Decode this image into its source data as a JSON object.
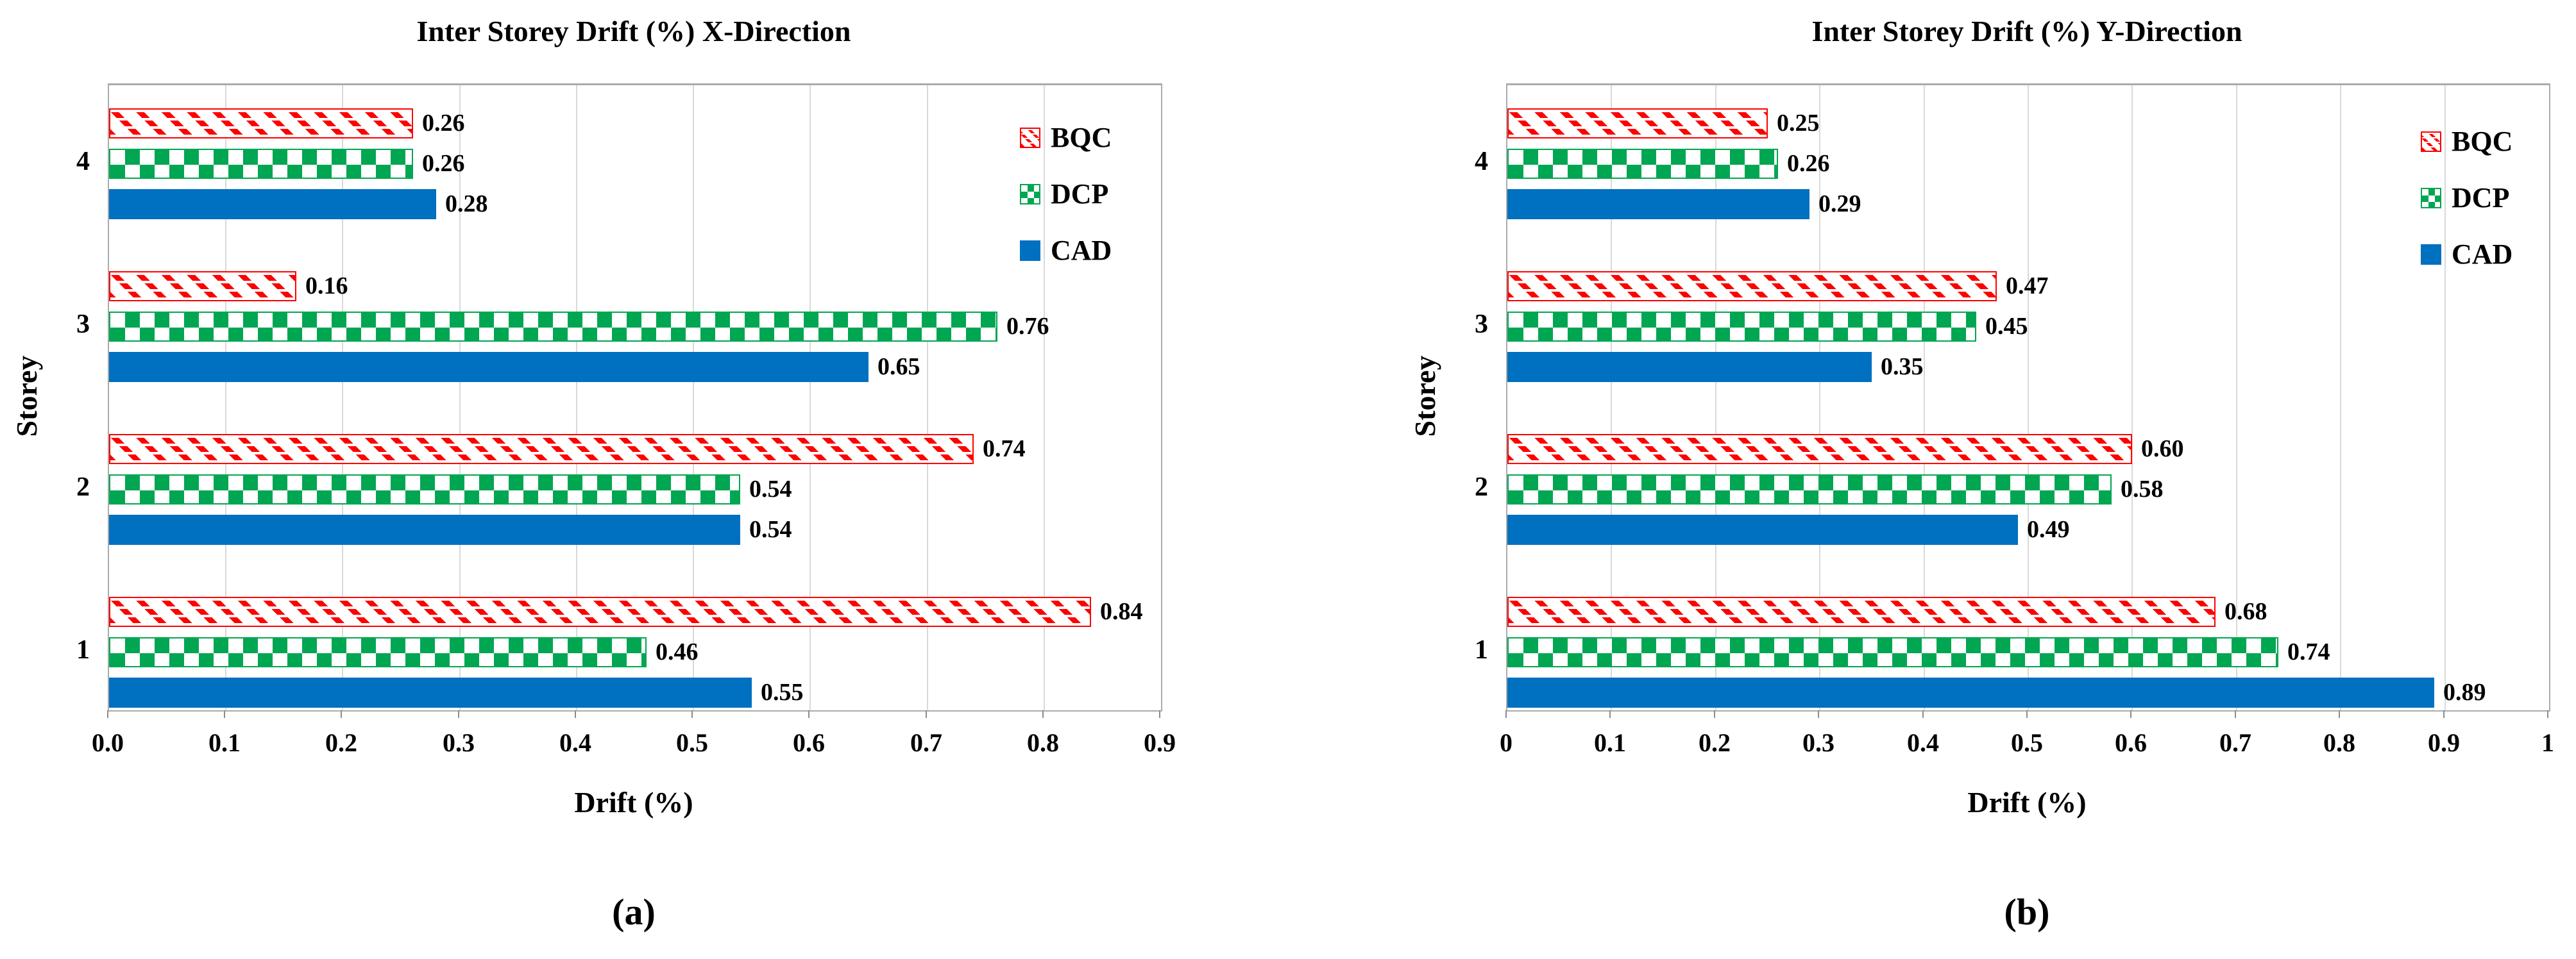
{
  "figure": {
    "background": "#ffffff",
    "captions": {
      "a": "(a)",
      "b": "(b)"
    }
  },
  "colors": {
    "bqc_red": "#fe0000",
    "dcp_green": "#00a651",
    "cad_blue": "#0070c0",
    "gridline": "#d9d9d9",
    "plot_border": "#ababab",
    "text": "#000000"
  },
  "chart_data": [
    {
      "type": "bar",
      "orientation": "horizontal",
      "title": "Inter Storey Drift (%) X-Direction",
      "xlabel": "Drift (%)",
      "ylabel": "Storey",
      "caption": "(a)",
      "grid": true,
      "legend_position": "top-right",
      "categories": [
        "4",
        "3",
        "2",
        "1"
      ],
      "xlim": [
        0,
        0.9
      ],
      "xticks": [
        "0.0",
        "0.1",
        "0.2",
        "0.3",
        "0.4",
        "0.5",
        "0.6",
        "0.7",
        "0.8",
        "0.9"
      ],
      "series": [
        {
          "name": "BQC",
          "values": [
            0.26,
            0.16,
            0.74,
            0.84
          ],
          "labels": [
            "0.26",
            "0.16",
            "0.74",
            "0.84"
          ]
        },
        {
          "name": "DCP",
          "values": [
            0.26,
            0.76,
            0.54,
            0.46
          ],
          "labels": [
            "0.26",
            "0.76",
            "0.54",
            "0.46"
          ]
        },
        {
          "name": "CAD",
          "values": [
            0.28,
            0.65,
            0.54,
            0.55
          ],
          "labels": [
            "0.28",
            "0.65",
            "0.54",
            "0.55"
          ]
        }
      ]
    },
    {
      "type": "bar",
      "orientation": "horizontal",
      "title": "Inter Storey Drift (%) Y-Direction",
      "xlabel": "Drift (%)",
      "ylabel": "Storey",
      "caption": "(b)",
      "grid": true,
      "legend_position": "top-right",
      "categories": [
        "4",
        "3",
        "2",
        "1"
      ],
      "xlim": [
        0,
        1
      ],
      "xticks": [
        "0",
        "0.1",
        "0.2",
        "0.3",
        "0.4",
        "0.5",
        "0.6",
        "0.7",
        "0.8",
        "0.9",
        "1"
      ],
      "series": [
        {
          "name": "BQC",
          "values": [
            0.25,
            0.47,
            0.6,
            0.68
          ],
          "labels": [
            "0.25",
            "0.47",
            "0.60",
            "0.68"
          ]
        },
        {
          "name": "DCP",
          "values": [
            0.26,
            0.45,
            0.58,
            0.74
          ],
          "labels": [
            "0.26",
            "0.45",
            "0.58",
            "0.74"
          ]
        },
        {
          "name": "CAD",
          "values": [
            0.29,
            0.35,
            0.49,
            0.89
          ],
          "labels": [
            "0.29",
            "0.35",
            "0.49",
            "0.89"
          ]
        }
      ]
    }
  ]
}
